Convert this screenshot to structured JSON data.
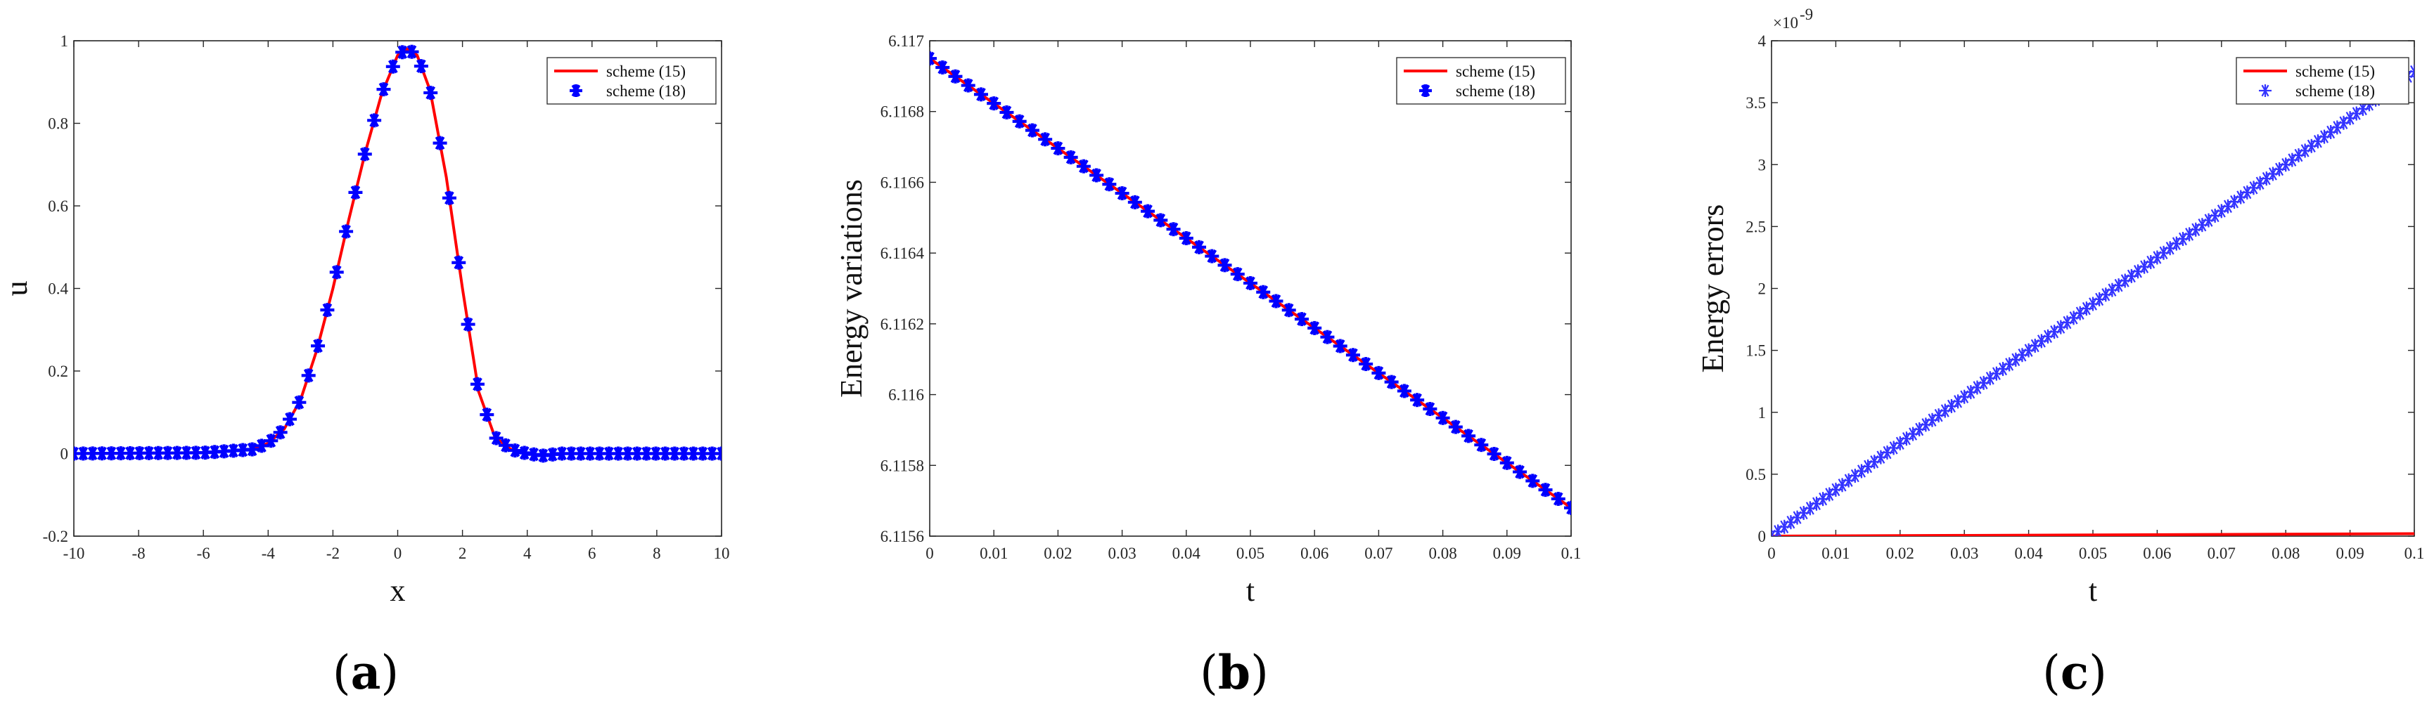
{
  "chart_data": [
    {
      "panel_label": "a",
      "type": "line",
      "xlabel": "x",
      "ylabel": "u",
      "xlim": [
        -10,
        10
      ],
      "ylim": [
        -0.2,
        1
      ],
      "xticks": [
        "-10",
        "-8",
        "-6",
        "-4",
        "-2",
        "0",
        "2",
        "4",
        "6",
        "8",
        "10"
      ],
      "yticks": [
        "-0.2",
        "0",
        "0.2",
        "0.4",
        "0.6",
        "0.8",
        "1"
      ],
      "legend_position": "top-right",
      "grid": false,
      "series": [
        {
          "name": "scheme (15)",
          "style": "line",
          "color": "#ff0000",
          "x": [
            -10,
            -6,
            -4.5,
            -4,
            -3.5,
            -3,
            -2.5,
            -2,
            -1.5,
            -1,
            -0.5,
            0,
            0.3,
            0.6,
            1,
            1.5,
            2,
            2.5,
            3,
            3.5,
            4,
            4.5,
            5,
            6,
            8,
            10
          ],
          "y": [
            0,
            0.002,
            0.01,
            0.025,
            0.06,
            0.13,
            0.25,
            0.4,
            0.57,
            0.73,
            0.87,
            0.965,
            0.98,
            0.965,
            0.88,
            0.67,
            0.4,
            0.15,
            0.04,
            0.01,
            0.0,
            -0.005,
            0.0,
            0.0,
            0.0,
            0.0
          ]
        },
        {
          "name": "scheme (18)",
          "style": "markers",
          "marker": "asterisk",
          "color": "#0000ff",
          "x": [
            -10,
            -6,
            -4.5,
            -4,
            -3.5,
            -3,
            -2.5,
            -2,
            -1.5,
            -1,
            -0.5,
            0,
            0.3,
            0.6,
            1,
            1.5,
            2,
            2.5,
            3,
            3.5,
            4,
            4.5,
            5,
            6,
            8,
            10
          ],
          "y": [
            0,
            0.002,
            0.01,
            0.025,
            0.06,
            0.13,
            0.25,
            0.4,
            0.57,
            0.73,
            0.87,
            0.965,
            0.98,
            0.965,
            0.88,
            0.67,
            0.4,
            0.15,
            0.04,
            0.01,
            0.0,
            -0.005,
            0.0,
            0.0,
            0.0,
            0.0
          ]
        }
      ]
    },
    {
      "panel_label": "b",
      "type": "line",
      "xlabel": "t",
      "ylabel": "Energy variations",
      "xlim": [
        0,
        0.1
      ],
      "ylim": [
        6.1156,
        6.117
      ],
      "xticks": [
        "0",
        "0.01",
        "0.02",
        "0.03",
        "0.04",
        "0.05",
        "0.06",
        "0.07",
        "0.08",
        "0.09",
        "0.1"
      ],
      "yticks": [
        "6.1156",
        "6.1158",
        "6.116",
        "6.1162",
        "6.1164",
        "6.1166",
        "6.1168",
        "6.117"
      ],
      "legend_position": "top-right",
      "grid": false,
      "series": [
        {
          "name": "scheme (15)",
          "style": "line",
          "color": "#ff0000",
          "x": [
            0,
            0.1
          ],
          "y": [
            6.11695,
            6.11568
          ]
        },
        {
          "name": "scheme (18)",
          "style": "markers",
          "marker": "asterisk",
          "color": "#0000ff",
          "x": [
            0,
            0.1
          ],
          "y": [
            6.11695,
            6.11568
          ]
        }
      ]
    },
    {
      "panel_label": "c",
      "type": "line",
      "xlabel": "t",
      "ylabel": "Energy errors",
      "xlim": [
        0,
        0.1
      ],
      "ylim": [
        0,
        4e-09
      ],
      "y_exponent_label": "×10",
      "y_exponent": "-9",
      "xticks": [
        "0",
        "0.01",
        "0.02",
        "0.03",
        "0.04",
        "0.05",
        "0.06",
        "0.07",
        "0.08",
        "0.09",
        "0.1"
      ],
      "yticks": [
        "0",
        "0.5",
        "1",
        "1.5",
        "2",
        "2.5",
        "3",
        "3.5",
        "4"
      ],
      "legend_position": "top-right",
      "grid": false,
      "series": [
        {
          "name": "scheme (15)",
          "style": "line",
          "color": "#ff0000",
          "x": [
            0,
            0.1
          ],
          "y": [
            0,
            2e-11
          ]
        },
        {
          "name": "scheme (18)",
          "style": "markers",
          "marker": "asterisk-light",
          "color": "#3333ff",
          "x": [
            0,
            0.1
          ],
          "y": [
            0,
            3.75e-09
          ]
        }
      ]
    }
  ]
}
